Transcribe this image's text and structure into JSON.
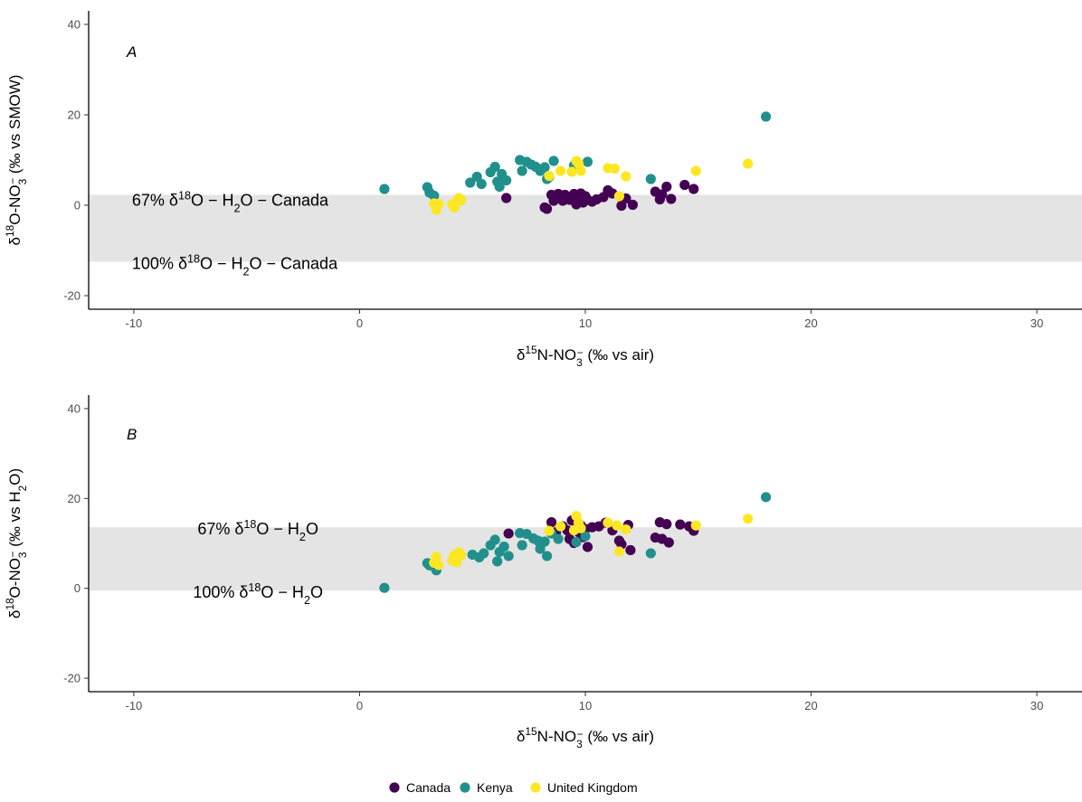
{
  "chart_data": [
    {
      "type": "scatter",
      "panel_label": "A",
      "xlabel": {
        "prefix": "δ",
        "sup": "15",
        "mid": "N-NO",
        "sub": "3",
        "supsub": "−",
        "suffix": " (‰ vs air)"
      },
      "ylabel": {
        "prefix": "δ",
        "sup": "18",
        "mid": "O-NO",
        "sub": "3",
        "supsub": "−",
        "suffix": " (‰ vs SMOW)"
      },
      "xlim": [
        -12,
        32
      ],
      "ylim": [
        -23,
        43
      ],
      "xticks": [
        -10,
        0,
        10,
        20,
        30
      ],
      "yticks": [
        -20,
        0,
        20,
        40
      ],
      "band": {
        "ymin": -12.5,
        "ymax": 2.3,
        "color": "#e4e4e4"
      },
      "annotations": [
        {
          "x": -10,
          "y": 1.5,
          "label": "67% δ18O−H2O−Canada",
          "parts": {
            "a": "67% δ",
            "sup": "18",
            "b": "O − H",
            "sub": "2",
            "c": "O − Canada"
          }
        },
        {
          "x": -10,
          "y": -12.5,
          "label": "100% δ18O−H2O−Canada",
          "parts": {
            "a": "100% δ",
            "sup": "18",
            "b": "O − H",
            "sub": "2",
            "c": "O − Canada"
          }
        }
      ],
      "series": [
        {
          "name": "Canada",
          "color": "#440154",
          "points": [
            [
              6.5,
              1.6
            ],
            [
              8.2,
              -0.5
            ],
            [
              8.3,
              -0.8
            ],
            [
              8.5,
              2.3
            ],
            [
              8.6,
              1.0
            ],
            [
              8.8,
              2.5
            ],
            [
              9.0,
              1.0
            ],
            [
              9.1,
              2.3
            ],
            [
              9.3,
              1.2
            ],
            [
              9.5,
              2.5
            ],
            [
              9.6,
              0.2
            ],
            [
              9.7,
              1.4
            ],
            [
              9.8,
              2.6
            ],
            [
              9.9,
              0.6
            ],
            [
              10.0,
              2.0
            ],
            [
              10.1,
              1.2
            ],
            [
              10.3,
              0.8
            ],
            [
              10.5,
              1.3
            ],
            [
              10.8,
              1.8
            ],
            [
              11.0,
              3.3
            ],
            [
              11.2,
              2.6
            ],
            [
              11.6,
              -0.1
            ],
            [
              11.8,
              1.5
            ],
            [
              12.1,
              0.1
            ],
            [
              13.1,
              3.0
            ],
            [
              13.3,
              1.3
            ],
            [
              13.4,
              2.4
            ],
            [
              13.6,
              4.1
            ],
            [
              13.8,
              1.4
            ],
            [
              14.4,
              4.5
            ],
            [
              14.8,
              3.6
            ]
          ]
        },
        {
          "name": "Kenya",
          "color": "#21908c",
          "points": [
            [
              1.1,
              3.6
            ],
            [
              3.0,
              4.0
            ],
            [
              3.1,
              2.8
            ],
            [
              3.3,
              2.1
            ],
            [
              4.9,
              5.0
            ],
            [
              5.2,
              6.3
            ],
            [
              5.4,
              4.7
            ],
            [
              5.8,
              7.3
            ],
            [
              6.0,
              8.5
            ],
            [
              6.1,
              5.2
            ],
            [
              6.2,
              4.1
            ],
            [
              6.3,
              6.9
            ],
            [
              6.5,
              5.5
            ],
            [
              7.1,
              10.0
            ],
            [
              7.2,
              7.6
            ],
            [
              7.4,
              9.6
            ],
            [
              7.6,
              9.0
            ],
            [
              7.8,
              8.5
            ],
            [
              8.0,
              7.6
            ],
            [
              8.2,
              8.4
            ],
            [
              8.3,
              5.8
            ],
            [
              8.4,
              6.3
            ],
            [
              8.6,
              9.8
            ],
            [
              9.5,
              8.8
            ],
            [
              10.1,
              9.6
            ],
            [
              12.9,
              5.8
            ],
            [
              18.0,
              19.6
            ]
          ]
        },
        {
          "name": "United Kingdom",
          "color": "#fde725",
          "points": [
            [
              3.3,
              0.4
            ],
            [
              3.4,
              -1.0
            ],
            [
              3.5,
              0.3
            ],
            [
              4.1,
              0.2
            ],
            [
              4.2,
              -0.5
            ],
            [
              4.3,
              0.9
            ],
            [
              4.4,
              1.6
            ],
            [
              4.5,
              1.1
            ],
            [
              8.4,
              6.5
            ],
            [
              8.9,
              7.6
            ],
            [
              9.4,
              7.4
            ],
            [
              9.6,
              9.8
            ],
            [
              9.7,
              9.2
            ],
            [
              9.8,
              7.6
            ],
            [
              11.0,
              8.2
            ],
            [
              11.3,
              8.1
            ],
            [
              11.5,
              2.0
            ],
            [
              11.8,
              6.4
            ],
            [
              14.9,
              7.6
            ],
            [
              17.2,
              9.2
            ]
          ]
        }
      ]
    },
    {
      "type": "scatter",
      "panel_label": "B",
      "xlabel": {
        "prefix": "δ",
        "sup": "15",
        "mid": "N-NO",
        "sub": "3",
        "supsub": "−",
        "suffix": " (‰ vs air)"
      },
      "ylabel": {
        "prefix": "δ",
        "sup": "18",
        "mid": "O-NO",
        "sub": "3",
        "supsub": "−",
        "suffix": " (‰ vs H",
        "sub2": "2",
        "suffix2": "O)"
      },
      "xlim": [
        -12,
        32
      ],
      "ylim": [
        -23,
        43
      ],
      "xticks": [
        -10,
        0,
        10,
        20,
        30
      ],
      "yticks": [
        -20,
        0,
        20,
        40
      ],
      "band": {
        "ymin": -0.5,
        "ymax": 13.6,
        "color": "#e4e4e4"
      },
      "annotations": [
        {
          "x": -4.5,
          "y": 13.6,
          "label": "67% δ18O−H2O",
          "parts": {
            "a": "67% δ",
            "sup": "18",
            "b": "O − H",
            "sub": "2",
            "c": "O"
          }
        },
        {
          "x": -4.5,
          "y": -0.5,
          "label": "100% δ18O−H2O",
          "parts": {
            "a": "100% δ",
            "sup": "18",
            "b": "O − H",
            "sub": "2",
            "c": "O"
          }
        }
      ],
      "series": [
        {
          "name": "Canada",
          "color": "#440154",
          "points": [
            [
              6.6,
              12.2
            ],
            [
              8.5,
              14.7
            ],
            [
              8.7,
              12.5
            ],
            [
              9.0,
              13.8
            ],
            [
              9.2,
              12.9
            ],
            [
              9.3,
              11.0
            ],
            [
              9.4,
              15.1
            ],
            [
              9.5,
              10.1
            ],
            [
              9.7,
              12.5
            ],
            [
              9.8,
              14.0
            ],
            [
              9.9,
              11.4
            ],
            [
              10.0,
              13.2
            ],
            [
              10.1,
              9.2
            ],
            [
              10.3,
              13.6
            ],
            [
              10.6,
              13.8
            ],
            [
              10.9,
              14.6
            ],
            [
              11.2,
              12.9
            ],
            [
              11.5,
              10.6
            ],
            [
              11.6,
              9.8
            ],
            [
              11.9,
              14.1
            ],
            [
              12.0,
              8.5
            ],
            [
              13.1,
              11.3
            ],
            [
              13.3,
              14.7
            ],
            [
              13.4,
              11.0
            ],
            [
              13.6,
              14.3
            ],
            [
              13.7,
              10.2
            ],
            [
              14.2,
              14.2
            ],
            [
              14.6,
              13.8
            ],
            [
              14.8,
              12.8
            ]
          ]
        },
        {
          "name": "Kenya",
          "color": "#21908c",
          "points": [
            [
              1.1,
              0.1
            ],
            [
              3.0,
              5.6
            ],
            [
              3.1,
              5.1
            ],
            [
              3.4,
              4.0
            ],
            [
              5.0,
              7.5
            ],
            [
              5.3,
              6.9
            ],
            [
              5.5,
              7.8
            ],
            [
              5.8,
              9.6
            ],
            [
              6.0,
              10.8
            ],
            [
              6.1,
              6.0
            ],
            [
              6.2,
              8.1
            ],
            [
              6.4,
              9.3
            ],
            [
              6.6,
              7.2
            ],
            [
              7.1,
              12.3
            ],
            [
              7.2,
              9.6
            ],
            [
              7.4,
              12.1
            ],
            [
              7.7,
              11.1
            ],
            [
              7.9,
              10.6
            ],
            [
              8.0,
              8.8
            ],
            [
              8.2,
              10.4
            ],
            [
              8.3,
              7.2
            ],
            [
              8.5,
              12.2
            ],
            [
              8.8,
              11.0
            ],
            [
              9.6,
              10.3
            ],
            [
              10.0,
              11.6
            ],
            [
              12.9,
              7.8
            ],
            [
              18.0,
              20.3
            ]
          ]
        },
        {
          "name": "United Kingdom",
          "color": "#fde725",
          "points": [
            [
              3.3,
              5.7
            ],
            [
              3.4,
              7.0
            ],
            [
              3.5,
              5.2
            ],
            [
              4.1,
              6.2
            ],
            [
              4.2,
              7.4
            ],
            [
              4.3,
              5.8
            ],
            [
              4.4,
              8.0
            ],
            [
              4.5,
              7.4
            ],
            [
              8.4,
              12.8
            ],
            [
              8.9,
              13.8
            ],
            [
              9.5,
              12.9
            ],
            [
              9.6,
              16.1
            ],
            [
              9.7,
              14.6
            ],
            [
              9.8,
              13.4
            ],
            [
              11.0,
              14.6
            ],
            [
              11.4,
              14.0
            ],
            [
              11.5,
              8.2
            ],
            [
              11.8,
              13.1
            ],
            [
              14.9,
              14.0
            ],
            [
              17.2,
              15.5
            ]
          ]
        }
      ]
    }
  ],
  "legend": {
    "position": "bottom",
    "items": [
      {
        "label": "Canada",
        "color": "#440154"
      },
      {
        "label": "Kenya",
        "color": "#21908c"
      },
      {
        "label": "United Kingdom",
        "color": "#fde725"
      }
    ]
  }
}
